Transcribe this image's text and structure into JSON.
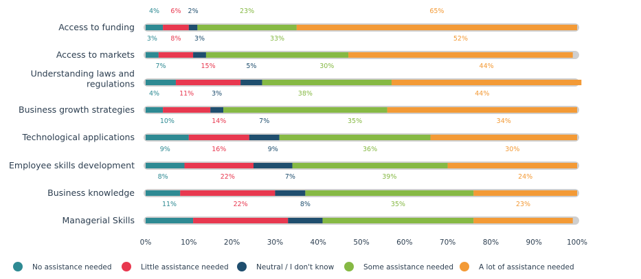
{
  "chart_data": {
    "type": "bar",
    "orientation": "horizontal",
    "stacked": true,
    "title": "",
    "xlabel": "",
    "ylabel": "",
    "xlim": [
      0,
      100
    ],
    "x_ticks": [
      "0%",
      "10%",
      "20%",
      "30%",
      "40%",
      "50%",
      "60%",
      "70%",
      "80%",
      "90%",
      "100%"
    ],
    "categories": [
      [
        "Access to funding"
      ],
      [
        "Access to markets"
      ],
      [
        "Understanding laws and",
        "regulations"
      ],
      [
        "Business growth strategies"
      ],
      [
        "Technological applications"
      ],
      [
        "Employee skills development"
      ],
      [
        "Business knowledge"
      ],
      [
        "Managerial Skills"
      ]
    ],
    "series": [
      {
        "name": "No assistance needed",
        "color": "#2e8a93",
        "values": [
          4,
          3,
          7,
          4,
          10,
          9,
          8,
          11
        ]
      },
      {
        "name": "Little assistance needed",
        "color": "#e8384f",
        "values": [
          6,
          8,
          15,
          11,
          14,
          16,
          22,
          22
        ]
      },
      {
        "name": "Neutral / I don't know",
        "color": "#1f4e6e",
        "values": [
          2,
          3,
          5,
          3,
          7,
          9,
          7,
          8
        ]
      },
      {
        "name": "Some assistance needed",
        "color": "#86b944",
        "values": [
          23,
          33,
          30,
          38,
          35,
          36,
          39,
          35
        ]
      },
      {
        "name": "A lot of assistance needed",
        "color": "#f39a36",
        "values": [
          65,
          52,
          44,
          44,
          34,
          30,
          24,
          23
        ]
      }
    ],
    "value_format": "%",
    "legend_position": "bottom",
    "background_track_color": "#cfcfcf"
  }
}
